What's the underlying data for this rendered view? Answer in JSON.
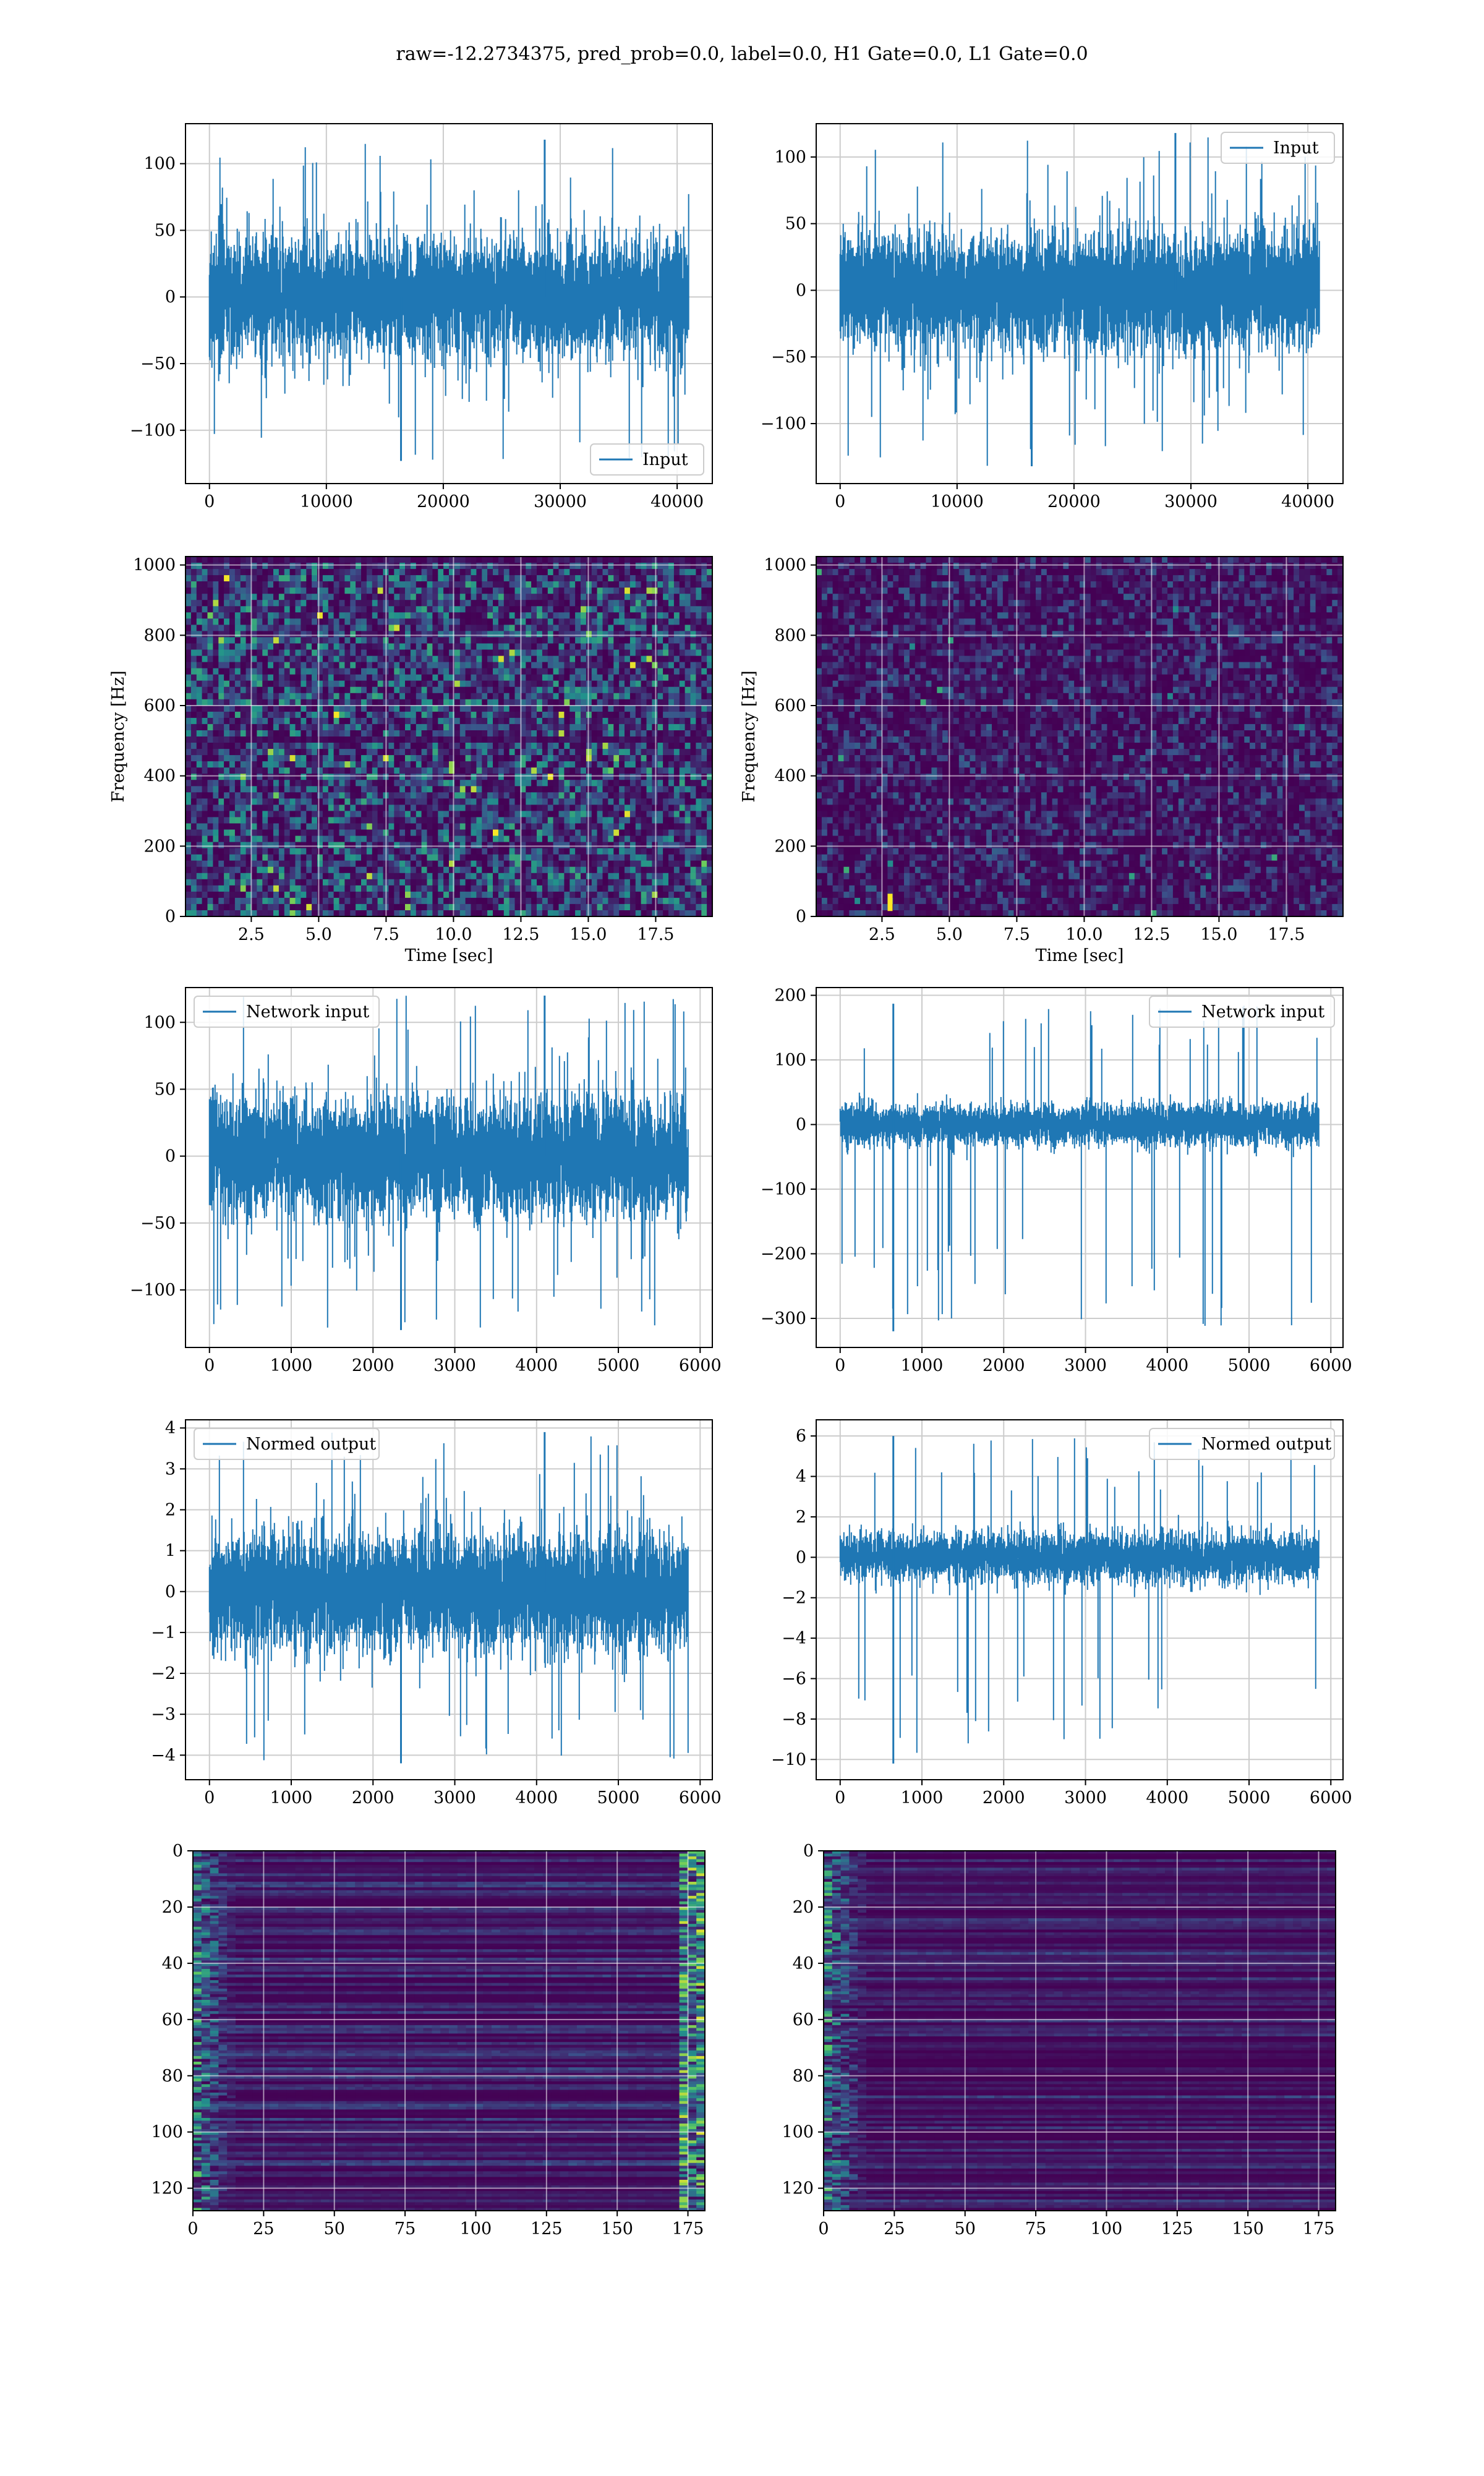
{
  "figure": {
    "title": "raw=-12.2734375, pred_prob=0.0, label=0.0, H1 Gate=0.0, L1 Gate=0.0"
  },
  "colors": {
    "line": "#1f77b4",
    "grid": "#cccccc",
    "viridis_low": "#440154",
    "viridis_mid": "#21918c",
    "viridis_high": "#fde725"
  },
  "chart_data": [
    {
      "id": "left-input",
      "type": "line",
      "series": [
        {
          "name": "Input",
          "n": 40960,
          "amplitude_typical": 55,
          "peak_min": -123,
          "peak_max": 118
        }
      ],
      "xlim": [
        -2048,
        43008
      ],
      "ylim": [
        -140,
        130
      ],
      "xticks": [
        0,
        10000,
        20000,
        30000,
        40000
      ],
      "yticks": [
        -100,
        -50,
        0,
        50,
        100
      ],
      "ytick_labels": [
        "−100",
        "−50",
        "0",
        "50",
        "100"
      ],
      "legend": "lower-right"
    },
    {
      "id": "right-input",
      "type": "line",
      "series": [
        {
          "name": "Input",
          "n": 40960,
          "amplitude_typical": 55,
          "peak_min": -132,
          "peak_max": 118
        }
      ],
      "xlim": [
        -2048,
        43008
      ],
      "ylim": [
        -145,
        125
      ],
      "xticks": [
        0,
        10000,
        20000,
        30000,
        40000
      ],
      "yticks": [
        -100,
        -50,
        0,
        50,
        100
      ],
      "ytick_labels": [
        "−100",
        "−50",
        "0",
        "50",
        "100"
      ],
      "legend": "top-right"
    },
    {
      "id": "left-spectrogram",
      "type": "heatmap",
      "xlabel": "Time [sec]",
      "ylabel": "Frequency [Hz]",
      "xlim": [
        0.06,
        19.6
      ],
      "ylim": [
        0,
        1024
      ],
      "xticks": [
        2.5,
        5.0,
        7.5,
        10.0,
        12.5,
        15.0,
        17.5
      ],
      "yticks": [
        0,
        200,
        400,
        600,
        800,
        1000
      ],
      "xtick_labels": [
        "2.5",
        "5.0",
        "7.5",
        "10.0",
        "12.5",
        "15.0",
        "17.5"
      ],
      "ytick_labels": [
        "0",
        "200",
        "400",
        "600",
        "800",
        "1000"
      ],
      "intensity": "moderate",
      "dark_bands_hz": [
        500,
        1012
      ]
    },
    {
      "id": "right-spectrogram",
      "type": "heatmap",
      "xlabel": "Time [sec]",
      "ylabel": "Frequency [Hz]",
      "xlim": [
        0.06,
        19.6
      ],
      "ylim": [
        0,
        1024
      ],
      "xticks": [
        2.5,
        5.0,
        7.5,
        10.0,
        12.5,
        15.0,
        17.5
      ],
      "yticks": [
        0,
        200,
        400,
        600,
        800,
        1000
      ],
      "xtick_labels": [
        "2.5",
        "5.0",
        "7.5",
        "10.0",
        "12.5",
        "15.0",
        "17.5"
      ],
      "ytick_labels": [
        "0",
        "200",
        "400",
        "600",
        "800",
        "1000"
      ],
      "intensity": "low",
      "hot_spot": {
        "t": 2.8,
        "f": 40
      }
    },
    {
      "id": "left-network-input",
      "type": "line",
      "series": [
        {
          "name": "Network input",
          "n": 5856,
          "amplitude_typical": 55,
          "peak_min": -130,
          "peak_max": 120
        }
      ],
      "xlim": [
        -293,
        6149
      ],
      "ylim": [
        -143,
        126
      ],
      "xticks": [
        0,
        1000,
        2000,
        3000,
        4000,
        5000,
        6000
      ],
      "yticks": [
        -100,
        -50,
        0,
        50,
        100
      ],
      "ytick_labels": [
        "−100",
        "−50",
        "0",
        "50",
        "100"
      ],
      "legend": "top-left"
    },
    {
      "id": "right-network-input",
      "type": "line",
      "series": [
        {
          "name": "Network input",
          "n": 5856,
          "amplitude_typical": 40,
          "peak_min": -320,
          "peak_max": 187,
          "spike_x": 650
        }
      ],
      "xlim": [
        -293,
        6149
      ],
      "ylim": [
        -345,
        212
      ],
      "xticks": [
        0,
        1000,
        2000,
        3000,
        4000,
        5000,
        6000
      ],
      "yticks": [
        -300,
        -200,
        -100,
        0,
        100,
        200
      ],
      "ytick_labels": [
        "−300",
        "−200",
        "−100",
        "0",
        "100",
        "200"
      ],
      "legend": "top-right"
    },
    {
      "id": "left-normed-output",
      "type": "line",
      "series": [
        {
          "name": "Normed output",
          "n": 5856,
          "amplitude_typical": 1.8,
          "peak_min": -4.2,
          "peak_max": 3.9
        }
      ],
      "xlim": [
        -293,
        6149
      ],
      "ylim": [
        -4.6,
        4.2
      ],
      "xticks": [
        0,
        1000,
        2000,
        3000,
        4000,
        5000,
        6000
      ],
      "yticks": [
        -4,
        -3,
        -2,
        -1,
        0,
        1,
        2,
        3,
        4
      ],
      "ytick_labels": [
        "−4",
        "−3",
        "−2",
        "−1",
        "0",
        "1",
        "2",
        "3",
        "4"
      ],
      "legend": "top-left"
    },
    {
      "id": "right-normed-output",
      "type": "line",
      "series": [
        {
          "name": "Normed output",
          "n": 5856,
          "amplitude_typical": 1.5,
          "peak_min": -10.2,
          "peak_max": 6.0,
          "spike_x": 650
        }
      ],
      "xlim": [
        -293,
        6149
      ],
      "ylim": [
        -11,
        6.8
      ],
      "xticks": [
        0,
        1000,
        2000,
        3000,
        4000,
        5000,
        6000
      ],
      "yticks": [
        -10,
        -8,
        -6,
        -4,
        -2,
        0,
        2,
        4,
        6
      ],
      "ytick_labels": [
        "−10",
        "−8",
        "−6",
        "−4",
        "−2",
        "0",
        "2",
        "4",
        "6"
      ],
      "legend": "top-right"
    },
    {
      "id": "left-feature-map",
      "type": "heatmap",
      "rows": 128,
      "cols": 181,
      "xlim": [
        0,
        181
      ],
      "ylim": [
        128,
        0
      ],
      "xticks": [
        0,
        25,
        50,
        75,
        100,
        125,
        150,
        175
      ],
      "yticks": [
        0,
        20,
        40,
        60,
        80,
        100,
        120
      ],
      "xtick_labels": [
        "0",
        "25",
        "50",
        "75",
        "100",
        "125",
        "150",
        "175"
      ],
      "ytick_labels": [
        "0",
        "20",
        "40",
        "60",
        "80",
        "100",
        "120"
      ],
      "bright_edges": "left-and-right"
    },
    {
      "id": "right-feature-map",
      "type": "heatmap",
      "rows": 128,
      "cols": 181,
      "xlim": [
        0,
        181
      ],
      "ylim": [
        128,
        0
      ],
      "xticks": [
        0,
        25,
        50,
        75,
        100,
        125,
        150,
        175
      ],
      "yticks": [
        0,
        20,
        40,
        60,
        80,
        100,
        120
      ],
      "xtick_labels": [
        "0",
        "25",
        "50",
        "75",
        "100",
        "125",
        "150",
        "175"
      ],
      "ytick_labels": [
        "0",
        "20",
        "40",
        "60",
        "80",
        "100",
        "120"
      ],
      "bright_edges": "left"
    }
  ]
}
